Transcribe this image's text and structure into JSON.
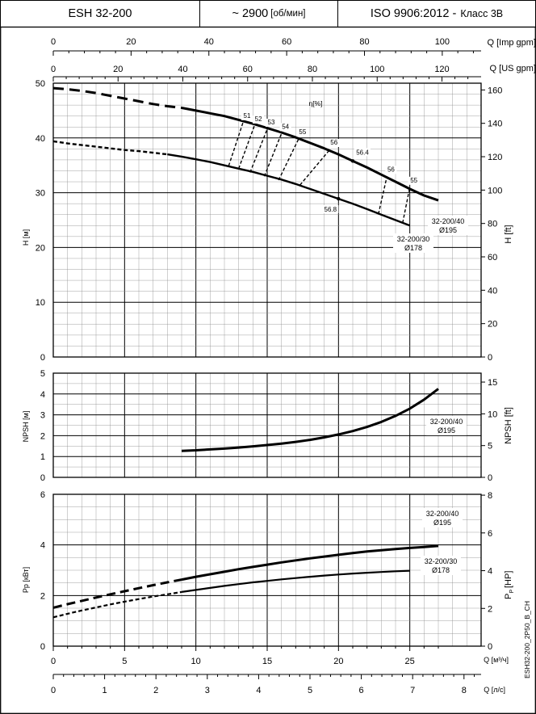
{
  "header": {
    "model": "ESH 32-200",
    "speed_value": "~ 2900",
    "speed_unit": "[об/мин]",
    "standard": "ISO 9906:2012 -",
    "class": "Класс 3В"
  },
  "axes": {
    "top1_label": "Q [Imp gpm]",
    "top1_ticks": [
      0,
      20,
      40,
      60,
      80,
      100
    ],
    "top2_label": "Q [US gpm]",
    "top2_ticks": [
      0,
      20,
      40,
      60,
      80,
      100,
      120
    ],
    "bottom1_label": "Q [м³/ч]",
    "bottom1_ticks": [
      0,
      5,
      10,
      15,
      20,
      25
    ],
    "bottom2_label": "Q [л/с]",
    "bottom2_ticks": [
      0,
      1,
      2,
      3,
      4,
      5,
      6,
      7,
      8
    ],
    "h_left_label": "H [м]",
    "h_left_ticks": [
      0,
      10,
      20,
      30,
      40,
      50
    ],
    "h_right_label": "H [ft]",
    "h_right_ticks": [
      0,
      20,
      40,
      60,
      80,
      100,
      120,
      140,
      160
    ],
    "npsh_left_label": "NPSH [м]",
    "npsh_left_ticks": [
      0,
      1,
      2,
      3,
      4,
      5
    ],
    "npsh_right_label": "NPSH [ft]",
    "npsh_right_ticks": [
      0,
      5,
      10,
      15
    ],
    "p_left_label": "Pp [кВт]",
    "p_left_ticks": [
      0,
      2,
      4,
      6
    ],
    "p_right_label": "P",
    "p_right_sub": "P",
    "p_right_unit": "[HP]",
    "p_right_ticks": [
      0,
      2,
      4,
      6,
      8
    ]
  },
  "chart_data": [
    {
      "type": "line",
      "panel": "head",
      "xlabel": "Q [м³/ч]",
      "ylabel": "H [м]",
      "xlim": [
        0,
        30
      ],
      "ylim": [
        0,
        50
      ],
      "eta_label": "η[%]",
      "series": [
        {
          "name": "32-200/40 Ø195",
          "label_line1": "32-200/40",
          "label_line2": "Ø195",
          "dashed_x": [
            0,
            1,
            2,
            3,
            4,
            5,
            6,
            7,
            8,
            9
          ],
          "dashed_y": [
            49.1,
            48.9,
            48.6,
            48.2,
            47.7,
            47.2,
            46.7,
            46.2,
            45.8,
            45.5
          ],
          "x": [
            9,
            10,
            11,
            12,
            13,
            14,
            15,
            16,
            17,
            18,
            19,
            20,
            21,
            22,
            23,
            24,
            25,
            26,
            27
          ],
          "y": [
            45.5,
            45.0,
            44.5,
            44.0,
            43.3,
            42.6,
            41.8,
            41.0,
            40.1,
            39.1,
            38.1,
            37.0,
            35.8,
            34.6,
            33.3,
            32.0,
            30.7,
            29.5,
            28.6
          ]
        },
        {
          "name": "32-200/30 Ø178",
          "label_line1": "32-200/30",
          "label_line2": "Ø178",
          "dashed_x": [
            0,
            1,
            2,
            3,
            4,
            5,
            6,
            7,
            8
          ],
          "dashed_y": [
            39.4,
            39.0,
            38.7,
            38.4,
            38.1,
            37.8,
            37.6,
            37.3,
            37.0
          ],
          "x": [
            8,
            9,
            10,
            11,
            12,
            13,
            14,
            15,
            16,
            17,
            18,
            19,
            20,
            21,
            22,
            23,
            24,
            25
          ],
          "y": [
            37.0,
            36.6,
            36.1,
            35.6,
            35.0,
            34.4,
            33.8,
            33.1,
            32.4,
            31.6,
            30.7,
            29.8,
            28.9,
            28.0,
            27.0,
            26.0,
            25.0,
            24.0
          ]
        }
      ],
      "efficiency_lines": [
        {
          "label": "51",
          "x1": 12.3,
          "y1": 34.9,
          "x2": 13.3,
          "y2": 42.8
        },
        {
          "label": "52",
          "x1": 13.0,
          "y1": 34.4,
          "x2": 14.1,
          "y2": 42.2
        },
        {
          "label": "53",
          "x1": 13.8,
          "y1": 33.7,
          "x2": 15.0,
          "y2": 41.6
        },
        {
          "label": "54",
          "x1": 14.8,
          "y1": 33.0,
          "x2": 16.0,
          "y2": 40.8
        },
        {
          "label": "55",
          "x1": 15.8,
          "y1": 32.3,
          "x2": 17.2,
          "y2": 39.8
        },
        {
          "label": "56",
          "x1": 17.3,
          "y1": 31.4,
          "x2": 19.4,
          "y2": 37.9
        },
        {
          "label": "56",
          "x1": 22.8,
          "y1": 26.1,
          "x2": 23.4,
          "y2": 33.0
        },
        {
          "label": "55",
          "x1": 24.5,
          "y1": 24.5,
          "x2": 25.0,
          "y2": 31.0
        }
      ],
      "efficiency_points": [
        {
          "label": "56.4",
          "x": 21.0,
          "y": 35.8
        },
        {
          "label": "56.8",
          "x": 20.0,
          "y": 28.9
        }
      ]
    },
    {
      "type": "line",
      "panel": "npsh",
      "xlabel": "Q [м³/ч]",
      "ylabel": "NPSH [м]",
      "xlim": [
        0,
        30
      ],
      "ylim": [
        0,
        5
      ],
      "series": [
        {
          "name": "32-200/40 Ø195",
          "label_line1": "32-200/40",
          "label_line2": "Ø195",
          "x": [
            9,
            10,
            11,
            12,
            13,
            14,
            15,
            16,
            17,
            18,
            19,
            20,
            21,
            22,
            23,
            24,
            25,
            26,
            27
          ],
          "y": [
            1.27,
            1.3,
            1.34,
            1.38,
            1.43,
            1.49,
            1.55,
            1.62,
            1.7,
            1.8,
            1.92,
            2.06,
            2.22,
            2.42,
            2.66,
            2.95,
            3.3,
            3.73,
            4.25
          ]
        }
      ]
    },
    {
      "type": "line",
      "panel": "power",
      "xlabel": "Q [м³/ч]",
      "ylabel": "Pp [кВт]",
      "xlim": [
        0,
        30
      ],
      "ylim": [
        0,
        6
      ],
      "series": [
        {
          "name": "32-200/40 Ø195",
          "label_line1": "32-200/40",
          "label_line2": "Ø195",
          "dashed_x": [
            0,
            1,
            2,
            3,
            4,
            5,
            6,
            7,
            8,
            9
          ],
          "dashed_y": [
            1.52,
            1.66,
            1.79,
            1.92,
            2.05,
            2.17,
            2.29,
            2.41,
            2.52,
            2.63
          ],
          "x": [
            9,
            10,
            11,
            12,
            13,
            14,
            15,
            16,
            17,
            18,
            19,
            20,
            21,
            22,
            23,
            24,
            25,
            26,
            27
          ],
          "y": [
            2.63,
            2.74,
            2.84,
            2.94,
            3.04,
            3.13,
            3.22,
            3.31,
            3.39,
            3.47,
            3.54,
            3.61,
            3.68,
            3.74,
            3.79,
            3.84,
            3.88,
            3.92,
            3.96
          ]
        },
        {
          "name": "32-200/30 Ø178",
          "label_line1": "32-200/30",
          "label_line2": "Ø178",
          "dashed_x": [
            0,
            1,
            2,
            3,
            4,
            5,
            6,
            7,
            8,
            9
          ],
          "dashed_y": [
            1.14,
            1.28,
            1.41,
            1.53,
            1.65,
            1.76,
            1.86,
            1.96,
            2.05,
            2.14
          ],
          "x": [
            9,
            10,
            11,
            12,
            13,
            14,
            15,
            16,
            17,
            18,
            19,
            20,
            21,
            22,
            23,
            24,
            25
          ],
          "y": [
            2.14,
            2.22,
            2.3,
            2.38,
            2.45,
            2.52,
            2.58,
            2.64,
            2.69,
            2.74,
            2.79,
            2.83,
            2.87,
            2.9,
            2.93,
            2.96,
            2.98
          ]
        }
      ]
    }
  ],
  "footer": {
    "code": "ESH32-200_2P50_B_CH"
  }
}
